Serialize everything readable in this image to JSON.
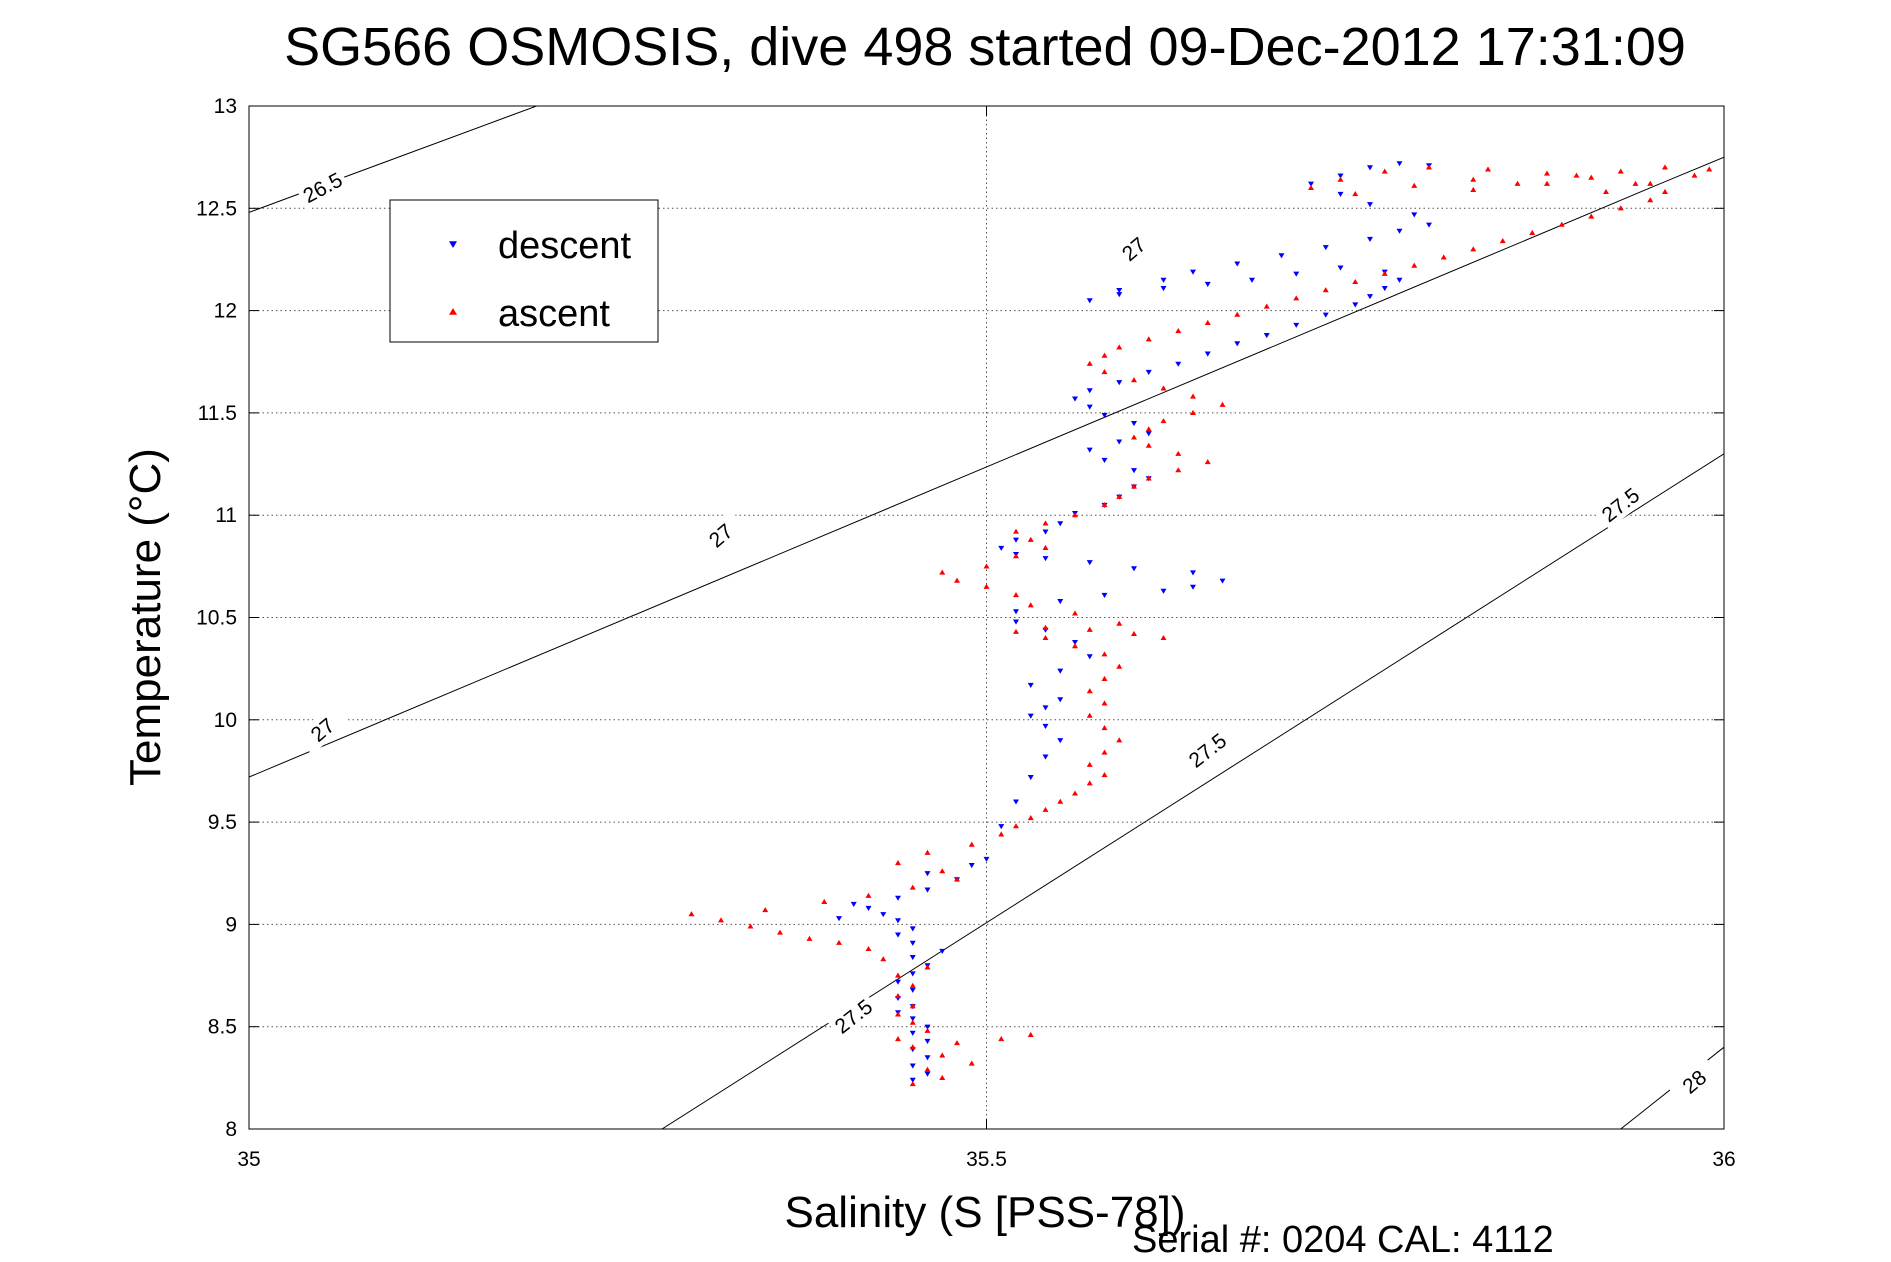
{
  "chart_data": {
    "type": "scatter",
    "title": "SG566 OSMOSIS, dive 498 started 09-Dec-2012 17:31:09",
    "xlabel": "Salinity (S [PSS-78])",
    "ylabel": "Temperature (°C)",
    "xlim": [
      35,
      36
    ],
    "ylim": [
      8,
      13
    ],
    "xticks": [
      "35",
      "35.5",
      "36"
    ],
    "yticks": [
      "8",
      "8.5",
      "9",
      "9.5",
      "10",
      "10.5",
      "11",
      "11.5",
      "12",
      "12.5",
      "13"
    ],
    "grid": true,
    "legend_position": "top-left",
    "footer": "Serial #: 0204  CAL: 4112",
    "series": [
      {
        "name": "descent",
        "marker": "triangle-down",
        "color": "#0000ff",
        "points": [
          [
            35.45,
            8.24
          ],
          [
            35.46,
            8.27
          ],
          [
            35.45,
            8.31
          ],
          [
            35.46,
            8.35
          ],
          [
            35.45,
            8.39
          ],
          [
            35.46,
            8.43
          ],
          [
            35.45,
            8.47
          ],
          [
            35.46,
            8.5
          ],
          [
            35.45,
            8.54
          ],
          [
            35.44,
            8.57
          ],
          [
            35.45,
            8.6
          ],
          [
            35.44,
            8.64
          ],
          [
            35.45,
            8.68
          ],
          [
            35.44,
            8.72
          ],
          [
            35.45,
            8.76
          ],
          [
            35.46,
            8.8
          ],
          [
            35.45,
            8.84
          ],
          [
            35.47,
            8.87
          ],
          [
            35.45,
            8.91
          ],
          [
            35.44,
            8.95
          ],
          [
            35.45,
            8.98
          ],
          [
            35.44,
            9.02
          ],
          [
            35.43,
            9.05
          ],
          [
            35.42,
            9.08
          ],
          [
            35.4,
            9.03
          ],
          [
            35.41,
            9.1
          ],
          [
            35.44,
            9.13
          ],
          [
            35.46,
            9.17
          ],
          [
            35.48,
            9.22
          ],
          [
            35.46,
            9.25
          ],
          [
            35.49,
            9.29
          ],
          [
            35.5,
            9.32
          ],
          [
            35.51,
            9.48
          ],
          [
            35.52,
            9.6
          ],
          [
            35.53,
            9.72
          ],
          [
            35.54,
            9.82
          ],
          [
            35.55,
            9.9
          ],
          [
            35.54,
            9.97
          ],
          [
            35.53,
            10.02
          ],
          [
            35.54,
            10.06
          ],
          [
            35.55,
            10.1
          ],
          [
            35.53,
            10.17
          ],
          [
            35.55,
            10.24
          ],
          [
            35.57,
            10.31
          ],
          [
            35.56,
            10.38
          ],
          [
            35.54,
            10.44
          ],
          [
            35.52,
            10.48
          ],
          [
            35.52,
            10.53
          ],
          [
            35.55,
            10.58
          ],
          [
            35.58,
            10.61
          ],
          [
            35.62,
            10.63
          ],
          [
            35.64,
            10.65
          ],
          [
            35.66,
            10.68
          ],
          [
            35.64,
            10.72
          ],
          [
            35.6,
            10.74
          ],
          [
            35.57,
            10.77
          ],
          [
            35.54,
            10.79
          ],
          [
            35.52,
            10.81
          ],
          [
            35.51,
            10.84
          ],
          [
            35.52,
            10.88
          ],
          [
            35.54,
            10.92
          ],
          [
            35.55,
            10.96
          ],
          [
            35.56,
            11.01
          ],
          [
            35.58,
            11.05
          ],
          [
            35.59,
            11.09
          ],
          [
            35.6,
            11.14
          ],
          [
            35.61,
            11.18
          ],
          [
            35.6,
            11.22
          ],
          [
            35.58,
            11.27
          ],
          [
            35.57,
            11.32
          ],
          [
            35.59,
            11.36
          ],
          [
            35.61,
            11.4
          ],
          [
            35.6,
            11.45
          ],
          [
            35.58,
            11.49
          ],
          [
            35.57,
            11.53
          ],
          [
            35.56,
            11.57
          ],
          [
            35.57,
            11.61
          ],
          [
            35.59,
            11.65
          ],
          [
            35.61,
            11.7
          ],
          [
            35.63,
            11.74
          ],
          [
            35.65,
            11.79
          ],
          [
            35.67,
            11.84
          ],
          [
            35.69,
            11.88
          ],
          [
            35.71,
            11.93
          ],
          [
            35.73,
            11.98
          ],
          [
            35.75,
            12.03
          ],
          [
            35.76,
            12.07
          ],
          [
            35.77,
            12.11
          ],
          [
            35.78,
            12.15
          ],
          [
            35.77,
            12.19
          ],
          [
            35.74,
            12.21
          ],
          [
            35.71,
            12.18
          ],
          [
            35.68,
            12.15
          ],
          [
            35.65,
            12.13
          ],
          [
            35.62,
            12.11
          ],
          [
            35.59,
            12.08
          ],
          [
            35.57,
            12.05
          ],
          [
            35.59,
            12.1
          ],
          [
            35.62,
            12.15
          ],
          [
            35.64,
            12.19
          ],
          [
            35.67,
            12.23
          ],
          [
            35.7,
            12.27
          ],
          [
            35.73,
            12.31
          ],
          [
            35.76,
            12.35
          ],
          [
            35.78,
            12.39
          ],
          [
            35.8,
            12.42
          ],
          [
            35.79,
            12.47
          ],
          [
            35.76,
            12.52
          ],
          [
            35.74,
            12.57
          ],
          [
            35.72,
            12.62
          ],
          [
            35.74,
            12.66
          ],
          [
            35.76,
            12.7
          ],
          [
            35.78,
            12.72
          ],
          [
            35.8,
            12.71
          ]
        ]
      },
      {
        "name": "ascent",
        "marker": "triangle-up",
        "color": "#ff0000",
        "points": [
          [
            35.45,
            8.22
          ],
          [
            35.47,
            8.25
          ],
          [
            35.46,
            8.29
          ],
          [
            35.49,
            8.32
          ],
          [
            35.47,
            8.36
          ],
          [
            35.45,
            8.4
          ],
          [
            35.44,
            8.44
          ],
          [
            35.48,
            8.42
          ],
          [
            35.51,
            8.44
          ],
          [
            35.53,
            8.46
          ],
          [
            35.46,
            8.48
          ],
          [
            35.45,
            8.52
          ],
          [
            35.44,
            8.56
          ],
          [
            35.45,
            8.6
          ],
          [
            35.44,
            8.65
          ],
          [
            35.45,
            8.7
          ],
          [
            35.44,
            8.75
          ],
          [
            35.46,
            8.79
          ],
          [
            35.43,
            8.83
          ],
          [
            35.42,
            8.88
          ],
          [
            35.4,
            8.91
          ],
          [
            35.38,
            8.93
          ],
          [
            35.36,
            8.96
          ],
          [
            35.34,
            8.99
          ],
          [
            35.32,
            9.02
          ],
          [
            35.3,
            9.05
          ],
          [
            35.35,
            9.07
          ],
          [
            35.39,
            9.11
          ],
          [
            35.42,
            9.14
          ],
          [
            35.45,
            9.18
          ],
          [
            35.48,
            9.22
          ],
          [
            35.47,
            9.26
          ],
          [
            35.44,
            9.3
          ],
          [
            35.46,
            9.35
          ],
          [
            35.49,
            9.39
          ],
          [
            35.51,
            9.44
          ],
          [
            35.52,
            9.48
          ],
          [
            35.53,
            9.52
          ],
          [
            35.54,
            9.56
          ],
          [
            35.55,
            9.6
          ],
          [
            35.56,
            9.64
          ],
          [
            35.57,
            9.69
          ],
          [
            35.58,
            9.73
          ],
          [
            35.57,
            9.78
          ],
          [
            35.58,
            9.84
          ],
          [
            35.59,
            9.9
          ],
          [
            35.58,
            9.96
          ],
          [
            35.57,
            10.02
          ],
          [
            35.58,
            10.08
          ],
          [
            35.57,
            10.14
          ],
          [
            35.58,
            10.2
          ],
          [
            35.59,
            10.26
          ],
          [
            35.58,
            10.32
          ],
          [
            35.56,
            10.36
          ],
          [
            35.54,
            10.4
          ],
          [
            35.52,
            10.43
          ],
          [
            35.54,
            10.45
          ],
          [
            35.57,
            10.44
          ],
          [
            35.6,
            10.42
          ],
          [
            35.62,
            10.4
          ],
          [
            35.59,
            10.47
          ],
          [
            35.56,
            10.52
          ],
          [
            35.53,
            10.56
          ],
          [
            35.52,
            10.61
          ],
          [
            35.5,
            10.65
          ],
          [
            35.48,
            10.68
          ],
          [
            35.47,
            10.72
          ],
          [
            35.5,
            10.75
          ],
          [
            35.52,
            10.8
          ],
          [
            35.54,
            10.84
          ],
          [
            35.53,
            10.88
          ],
          [
            35.52,
            10.92
          ],
          [
            35.54,
            10.96
          ],
          [
            35.56,
            11.0
          ],
          [
            35.58,
            11.05
          ],
          [
            35.59,
            11.09
          ],
          [
            35.6,
            11.14
          ],
          [
            35.61,
            11.18
          ],
          [
            35.63,
            11.22
          ],
          [
            35.65,
            11.26
          ],
          [
            35.63,
            11.3
          ],
          [
            35.61,
            11.34
          ],
          [
            35.6,
            11.38
          ],
          [
            35.61,
            11.42
          ],
          [
            35.62,
            11.46
          ],
          [
            35.64,
            11.5
          ],
          [
            35.66,
            11.54
          ],
          [
            35.64,
            11.58
          ],
          [
            35.62,
            11.62
          ],
          [
            35.6,
            11.66
          ],
          [
            35.58,
            11.7
          ],
          [
            35.57,
            11.74
          ],
          [
            35.58,
            11.78
          ],
          [
            35.59,
            11.82
          ],
          [
            35.61,
            11.86
          ],
          [
            35.63,
            11.9
          ],
          [
            35.65,
            11.94
          ],
          [
            35.67,
            11.98
          ],
          [
            35.69,
            12.02
          ],
          [
            35.71,
            12.06
          ],
          [
            35.73,
            12.1
          ],
          [
            35.75,
            12.14
          ],
          [
            35.77,
            12.18
          ],
          [
            35.79,
            12.22
          ],
          [
            35.81,
            12.26
          ],
          [
            35.83,
            12.3
          ],
          [
            35.85,
            12.34
          ],
          [
            35.87,
            12.38
          ],
          [
            35.89,
            12.42
          ],
          [
            35.91,
            12.46
          ],
          [
            35.93,
            12.5
          ],
          [
            35.95,
            12.54
          ],
          [
            35.96,
            12.58
          ],
          [
            35.94,
            12.62
          ],
          [
            35.91,
            12.65
          ],
          [
            35.88,
            12.67
          ],
          [
            35.84,
            12.69
          ],
          [
            35.8,
            12.7
          ],
          [
            35.77,
            12.68
          ],
          [
            35.74,
            12.64
          ],
          [
            35.72,
            12.6
          ],
          [
            35.75,
            12.57
          ],
          [
            35.79,
            12.61
          ],
          [
            35.83,
            12.64
          ],
          [
            35.88,
            12.62
          ],
          [
            35.92,
            12.58
          ],
          [
            35.95,
            12.62
          ],
          [
            35.98,
            12.66
          ],
          [
            35.99,
            12.69
          ],
          [
            35.96,
            12.7
          ],
          [
            35.93,
            12.68
          ],
          [
            35.9,
            12.66
          ],
          [
            35.86,
            12.62
          ],
          [
            35.83,
            12.59
          ]
        ]
      }
    ],
    "contours": [
      {
        "label": "26.5",
        "path": [
          [
            35,
            12.48
          ],
          [
            35.3,
            13.28
          ]
        ]
      },
      {
        "label": "27",
        "path": [
          [
            35,
            9.72
          ],
          [
            35.95,
            12.6
          ],
          [
            36,
            12.75
          ]
        ]
      },
      {
        "label": "27.5",
        "path": [
          [
            35.28,
            8.0
          ],
          [
            36,
            11.3
          ]
        ]
      },
      {
        "label": "28",
        "path": [
          [
            35.93,
            8.0
          ],
          [
            36,
            8.4
          ]
        ]
      }
    ],
    "contour_labels": [
      {
        "text": "26.5",
        "x": 35.05,
        "y": 12.6,
        "angle": -28
      },
      {
        "text": "27",
        "x": 35.32,
        "y": 10.9,
        "angle": -40
      },
      {
        "text": "27",
        "x": 35.05,
        "y": 9.95,
        "angle": -40
      },
      {
        "text": "27",
        "x": 35.6,
        "y": 12.3,
        "angle": -40
      },
      {
        "text": "27.5",
        "x": 35.93,
        "y": 11.05,
        "angle": -38
      },
      {
        "text": "27.5",
        "x": 35.65,
        "y": 9.85,
        "angle": -38
      },
      {
        "text": "27.5",
        "x": 35.41,
        "y": 8.55,
        "angle": -38
      },
      {
        "text": "28",
        "x": 35.98,
        "y": 8.23,
        "angle": -40
      }
    ]
  }
}
